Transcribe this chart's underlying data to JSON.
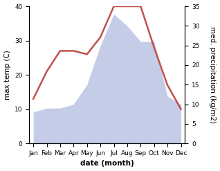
{
  "months": [
    "Jan",
    "Feb",
    "Mar",
    "Apr",
    "May",
    "Jun",
    "Jul",
    "Aug",
    "Sep",
    "Oct",
    "Nov",
    "Dec"
  ],
  "temperature": [
    13,
    21,
    27,
    27,
    26,
    31,
    40,
    40,
    40,
    28,
    17,
    10
  ],
  "precipitation": [
    8,
    9,
    9,
    10,
    15,
    25,
    33,
    30,
    26,
    26,
    12,
    10
  ],
  "temp_color": "#c0504d",
  "precip_color_fill": "#c5cce8",
  "left_ylim": [
    0,
    40
  ],
  "right_ylim": [
    0,
    35
  ],
  "left_yticks": [
    0,
    10,
    20,
    30,
    40
  ],
  "right_yticks": [
    0,
    5,
    10,
    15,
    20,
    25,
    30,
    35
  ],
  "left_ylabel": "max temp (C)",
  "right_ylabel": "med. precipitation (kg/m2)",
  "xlabel": "date (month)",
  "label_fontsize": 7.5,
  "tick_fontsize": 6.5
}
